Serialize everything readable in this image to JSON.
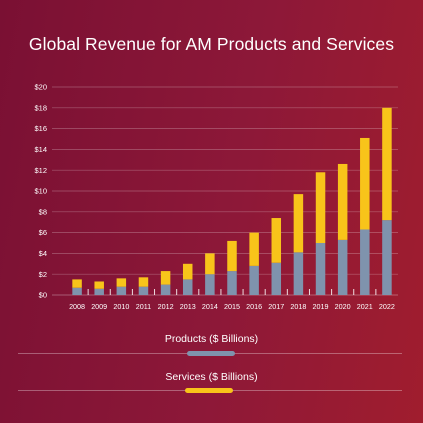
{
  "chart_data": {
    "type": "bar",
    "stacked": true,
    "title": "Global Revenue for AM Products and Services",
    "categories": [
      "2008",
      "2009",
      "2010",
      "2011",
      "2012",
      "2013",
      "2014",
      "2015",
      "2016",
      "2017",
      "2018",
      "2019",
      "2020",
      "2021",
      "2022"
    ],
    "series": [
      {
        "name": "Products ($ Billions)",
        "color": "#7f93ad",
        "values": [
          0.7,
          0.6,
          0.8,
          0.8,
          1.0,
          1.5,
          2.0,
          2.3,
          2.8,
          3.1,
          4.1,
          5.0,
          5.3,
          6.3,
          7.2
        ]
      },
      {
        "name": "Services ($ Billions)",
        "color": "#f8c41a",
        "values": [
          0.8,
          0.7,
          0.8,
          0.9,
          1.3,
          1.5,
          2.0,
          2.9,
          3.2,
          4.3,
          5.6,
          6.8,
          7.3,
          8.8,
          10.8
        ]
      }
    ],
    "y_ticks": [
      "$0",
      "$2",
      "$4",
      "$6",
      "$8",
      "$10",
      "$12",
      "$14",
      "$16",
      "$18",
      "$20"
    ],
    "ylim": [
      0,
      20
    ],
    "grid": true,
    "legend_placement": "bottom"
  },
  "colors": {
    "background_start": "#7a1033",
    "background_end": "#a01d2e",
    "text": "#ffffff",
    "products": "#7f93ad",
    "services": "#f8c41a"
  }
}
